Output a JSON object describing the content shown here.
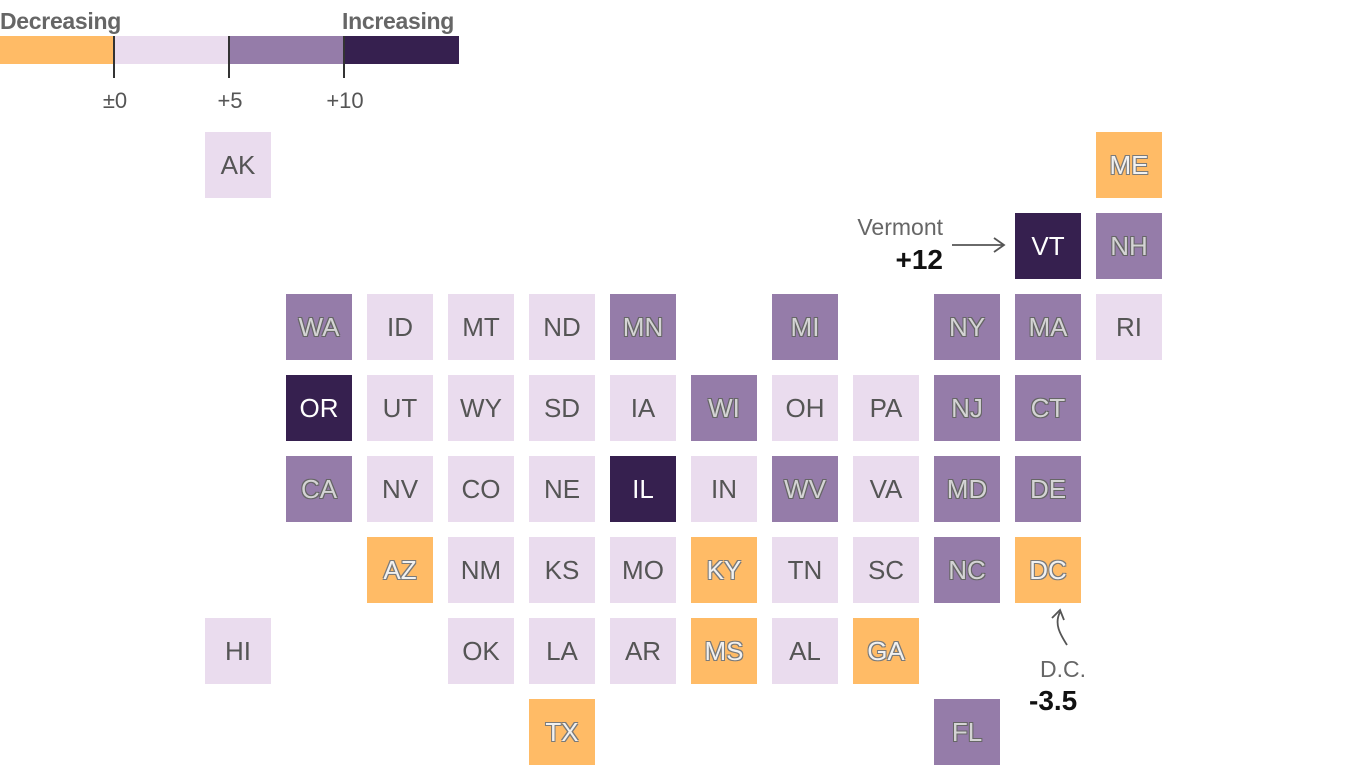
{
  "legend": {
    "decreasing_label": "Decreasing",
    "increasing_label": "Increasing",
    "ticks": [
      "±0",
      "+5",
      "+10"
    ],
    "colors": [
      "#ffbb66",
      "#eadcee",
      "#957ca9",
      "#36204f"
    ]
  },
  "colors": {
    "bin0": "#ffbb66",
    "bin1": "#eadcee",
    "bin2": "#957ca9",
    "bin3": "#36204f"
  },
  "states": [
    {
      "abbr": "AK",
      "bin": 1
    },
    {
      "abbr": "ME",
      "bin": 0
    },
    {
      "abbr": "VT",
      "bin": 3
    },
    {
      "abbr": "NH",
      "bin": 2
    },
    {
      "abbr": "WA",
      "bin": 2
    },
    {
      "abbr": "ID",
      "bin": 1
    },
    {
      "abbr": "MT",
      "bin": 1
    },
    {
      "abbr": "ND",
      "bin": 1
    },
    {
      "abbr": "MN",
      "bin": 2
    },
    {
      "abbr": "MI",
      "bin": 2
    },
    {
      "abbr": "NY",
      "bin": 2
    },
    {
      "abbr": "MA",
      "bin": 2
    },
    {
      "abbr": "RI",
      "bin": 1
    },
    {
      "abbr": "OR",
      "bin": 3
    },
    {
      "abbr": "UT",
      "bin": 1
    },
    {
      "abbr": "WY",
      "bin": 1
    },
    {
      "abbr": "SD",
      "bin": 1
    },
    {
      "abbr": "IA",
      "bin": 1
    },
    {
      "abbr": "WI",
      "bin": 2
    },
    {
      "abbr": "OH",
      "bin": 1
    },
    {
      "abbr": "PA",
      "bin": 1
    },
    {
      "abbr": "NJ",
      "bin": 2
    },
    {
      "abbr": "CT",
      "bin": 2
    },
    {
      "abbr": "CA",
      "bin": 2
    },
    {
      "abbr": "NV",
      "bin": 1
    },
    {
      "abbr": "CO",
      "bin": 1
    },
    {
      "abbr": "NE",
      "bin": 1
    },
    {
      "abbr": "IL",
      "bin": 3
    },
    {
      "abbr": "IN",
      "bin": 1
    },
    {
      "abbr": "WV",
      "bin": 2
    },
    {
      "abbr": "VA",
      "bin": 1
    },
    {
      "abbr": "MD",
      "bin": 2
    },
    {
      "abbr": "DE",
      "bin": 2
    },
    {
      "abbr": "AZ",
      "bin": 0
    },
    {
      "abbr": "NM",
      "bin": 1
    },
    {
      "abbr": "KS",
      "bin": 1
    },
    {
      "abbr": "MO",
      "bin": 1
    },
    {
      "abbr": "KY",
      "bin": 0
    },
    {
      "abbr": "TN",
      "bin": 1
    },
    {
      "abbr": "SC",
      "bin": 1
    },
    {
      "abbr": "NC",
      "bin": 2
    },
    {
      "abbr": "DC",
      "bin": 0
    },
    {
      "abbr": "HI",
      "bin": 1
    },
    {
      "abbr": "OK",
      "bin": 1
    },
    {
      "abbr": "LA",
      "bin": 1
    },
    {
      "abbr": "AR",
      "bin": 1
    },
    {
      "abbr": "MS",
      "bin": 0
    },
    {
      "abbr": "AL",
      "bin": 1
    },
    {
      "abbr": "GA",
      "bin": 0
    },
    {
      "abbr": "TX",
      "bin": 0
    },
    {
      "abbr": "FL",
      "bin": 2
    }
  ],
  "annotations": {
    "vermont": {
      "label": "Vermont",
      "value": "+12"
    },
    "dc": {
      "label": "D.C.",
      "value": "-3.5"
    }
  }
}
